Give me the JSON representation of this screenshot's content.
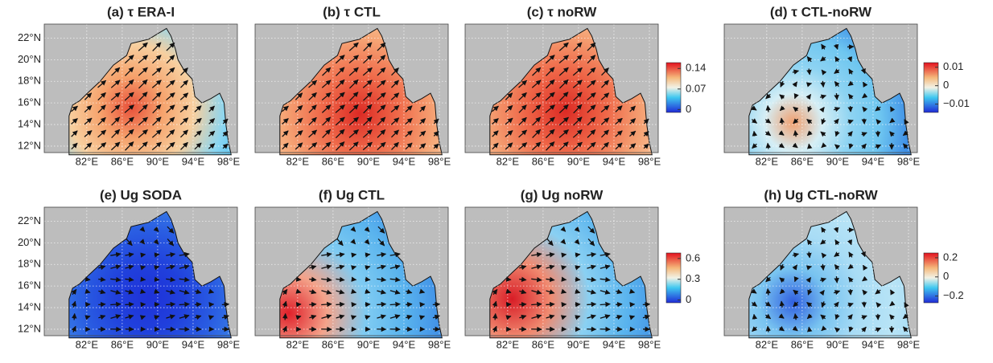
{
  "panels": [
    {
      "title": "(a) τ ERA-I"
    },
    {
      "title": "(b) τ CTL"
    },
    {
      "title": "(c) τ noRW"
    },
    {
      "title": "(d) τ CTL-noRW"
    },
    {
      "title": "(e) Ug SODA"
    },
    {
      "title": "(f) Ug CTL"
    },
    {
      "title": "(g) Ug noRW"
    },
    {
      "title": "(h) Ug CTL-noRW"
    }
  ],
  "lonlim": [
    77.2,
    99.0
  ],
  "latlim": [
    11.4,
    23.3
  ],
  "lat_ticks": [
    {
      "value": 12,
      "label": "12°N"
    },
    {
      "value": 14,
      "label": "14°N"
    },
    {
      "value": 16,
      "label": "16°N"
    },
    {
      "value": 18,
      "label": "18°N"
    },
    {
      "value": 20,
      "label": "20°N"
    },
    {
      "value": 22,
      "label": "22°N"
    }
  ],
  "lon_ticks": [
    {
      "value": 82,
      "label": "82°E"
    },
    {
      "value": 86,
      "label": "86°E"
    },
    {
      "value": 90,
      "label": "90°E"
    },
    {
      "value": 94,
      "label": "94°E"
    },
    {
      "value": 98,
      "label": "98°E"
    }
  ],
  "colorbars": [
    {
      "lim": [
        -0.01,
        0.16
      ],
      "ticks": [
        0,
        0.07,
        0.14
      ]
    },
    {
      "lim": [
        -0.0145,
        0.0125
      ],
      "ticks": [
        {
          "value": -0.01,
          "label": "−0.01"
        },
        0,
        0.01
      ]
    },
    {
      "lim": [
        -0.04,
        0.68
      ],
      "ticks": [
        0,
        0.3,
        0.6
      ]
    },
    {
      "lim": [
        -0.27,
        0.25
      ],
      "ticks": [
        {
          "value": -0.2,
          "label": "−0.2"
        },
        0,
        0.2
      ]
    }
  ]
}
